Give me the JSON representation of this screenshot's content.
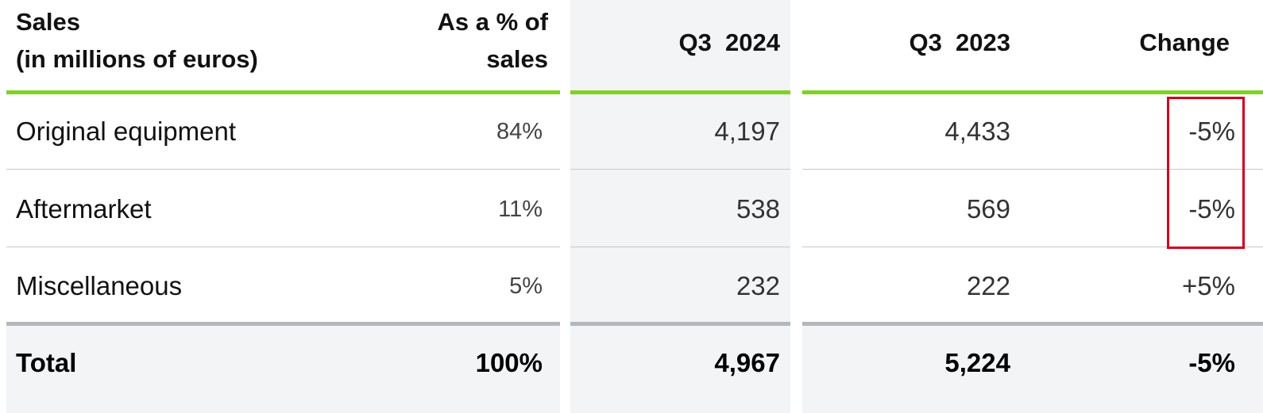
{
  "header": {
    "sales_line1": "Sales",
    "sales_line2": "(in millions of euros)",
    "pct_line1": "As a % of",
    "pct_line2": "sales",
    "q3_2024": "Q3  2024",
    "q3_2023": "Q3  2023",
    "change": "Change"
  },
  "rows": [
    {
      "label": "Original equipment",
      "pct": "84%",
      "q3_2024": "4,197",
      "q3_2023": "4,433",
      "change": "-5%"
    },
    {
      "label": "Aftermarket",
      "pct": "11%",
      "q3_2024": "538",
      "q3_2023": "569",
      "change": "-5%"
    },
    {
      "label": "Miscellaneous",
      "pct": "5%",
      "q3_2024": "232",
      "q3_2023": "222",
      "change": "+5%"
    }
  ],
  "total": {
    "label": "Total",
    "pct": "100%",
    "q3_2024": "4,967",
    "q3_2023": "5,224",
    "change": "-5%"
  },
  "colors": {
    "header_rule": "#7ed321",
    "highlight_box": "#d0021b",
    "shaded_column": "#f2f4f6"
  }
}
